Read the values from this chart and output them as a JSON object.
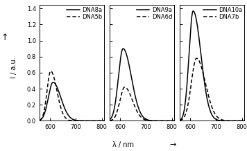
{
  "panels": [
    {
      "solid_label": "DNA8a",
      "dashed_label": "DNA5b",
      "solid_peak": 612,
      "solid_amp": 0.48,
      "solid_sigma_l": 18,
      "solid_sigma_r": 30,
      "dashed_peak": 603,
      "dashed_amp": 0.62,
      "dashed_sigma_l": 14,
      "dashed_sigma_r": 24
    },
    {
      "solid_label": "DNA9a",
      "dashed_label": "DNA6d",
      "solid_peak": 612,
      "solid_amp": 0.9,
      "solid_sigma_l": 18,
      "solid_sigma_r": 32,
      "dashed_peak": 618,
      "dashed_amp": 0.42,
      "dashed_sigma_l": 18,
      "dashed_sigma_r": 30
    },
    {
      "solid_label": "DNA10a",
      "dashed_label": "DNA7b",
      "solid_peak": 612,
      "solid_amp": 1.37,
      "solid_sigma_l": 16,
      "solid_sigma_r": 30,
      "dashed_peak": 625,
      "dashed_amp": 0.78,
      "dashed_sigma_l": 20,
      "dashed_sigma_r": 34
    }
  ],
  "xmin": 560,
  "xmax": 810,
  "ymin": 0.0,
  "ymax": 1.45,
  "yticks": [
    0.0,
    0.2,
    0.4,
    0.6,
    0.8,
    1.0,
    1.2,
    1.4
  ],
  "xticks": [
    600,
    700,
    800
  ],
  "xlabel": "λ / nm",
  "ylabel": "I / a.u.",
  "line_color": "black",
  "linewidth": 1.1,
  "background_color": "white",
  "legend_fontsize": 6.0,
  "axis_fontsize": 7.0,
  "tick_fontsize": 6.0
}
